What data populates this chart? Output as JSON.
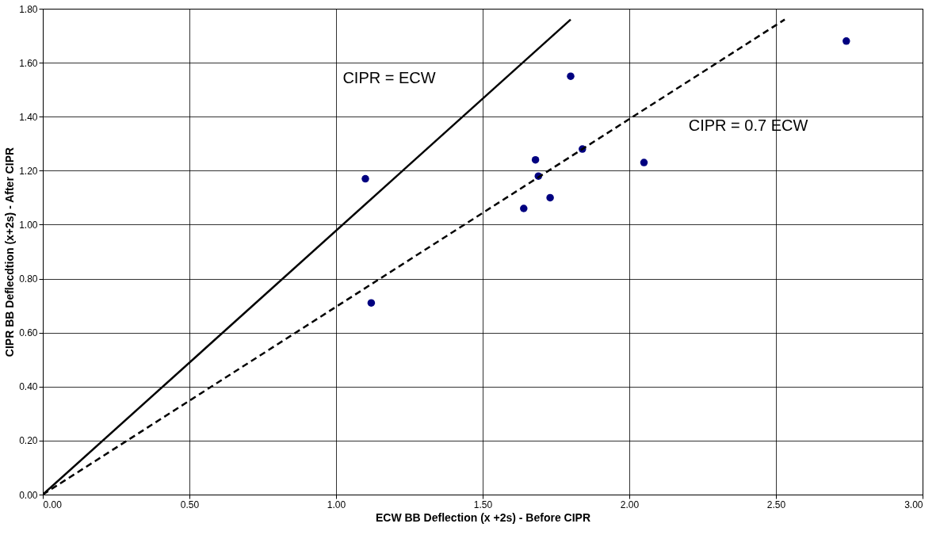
{
  "chart_data": {
    "type": "scatter",
    "xlabel": "ECW  BB Deflection (x +2s) - Before CIPR",
    "ylabel": "CIPR BB Deflecdtion (x+2s) - After CIPR",
    "xlim": [
      0,
      3
    ],
    "xticks": [
      {
        "value": 0,
        "label": "0.00"
      },
      {
        "value": 0.5,
        "label": "0.50"
      },
      {
        "value": 1,
        "label": "1.00"
      },
      {
        "value": 1.5,
        "label": "1.50"
      },
      {
        "value": 2,
        "label": "2.00"
      },
      {
        "value": 2.5,
        "label": "2.50"
      },
      {
        "value": 3,
        "label": "3.00"
      }
    ],
    "ylim": [
      0,
      1.8
    ],
    "yticks": [
      {
        "value": 0,
        "label": "0.00"
      },
      {
        "value": 0.2,
        "label": "0.20"
      },
      {
        "value": 0.4,
        "label": "0.40"
      },
      {
        "value": 0.6,
        "label": "0.60"
      },
      {
        "value": 0.8,
        "label": "0.80"
      },
      {
        "value": 1,
        "label": "1.00"
      },
      {
        "value": 1.2,
        "label": "1.20"
      },
      {
        "value": 1.4,
        "label": "1.40"
      },
      {
        "value": 1.6,
        "label": "1.60"
      },
      {
        "value": 1.8,
        "label": "1.80"
      }
    ],
    "grid": true,
    "series": [
      {
        "color": "#000080",
        "marker": "circle",
        "x": [
          1.1,
          1.12,
          1.64,
          1.68,
          1.69,
          1.73,
          1.8,
          1.84,
          2.05,
          2.74
        ],
        "values": [
          1.17,
          0.71,
          1.06,
          1.24,
          1.18,
          1.1,
          1.55,
          1.28,
          1.23,
          1.68
        ]
      },
      {
        "type": "line",
        "color": "#000000",
        "line_style": "solid",
        "x": [
          0,
          1.8
        ],
        "values": [
          0,
          1.76
        ]
      },
      {
        "type": "line",
        "color": "#000000",
        "line_style": "dashed",
        "x": [
          0,
          2.53
        ],
        "values": [
          0,
          1.76
        ]
      }
    ],
    "annotations": [
      "CIPR = ECW",
      "CIPR = 0.7 ECW"
    ]
  }
}
